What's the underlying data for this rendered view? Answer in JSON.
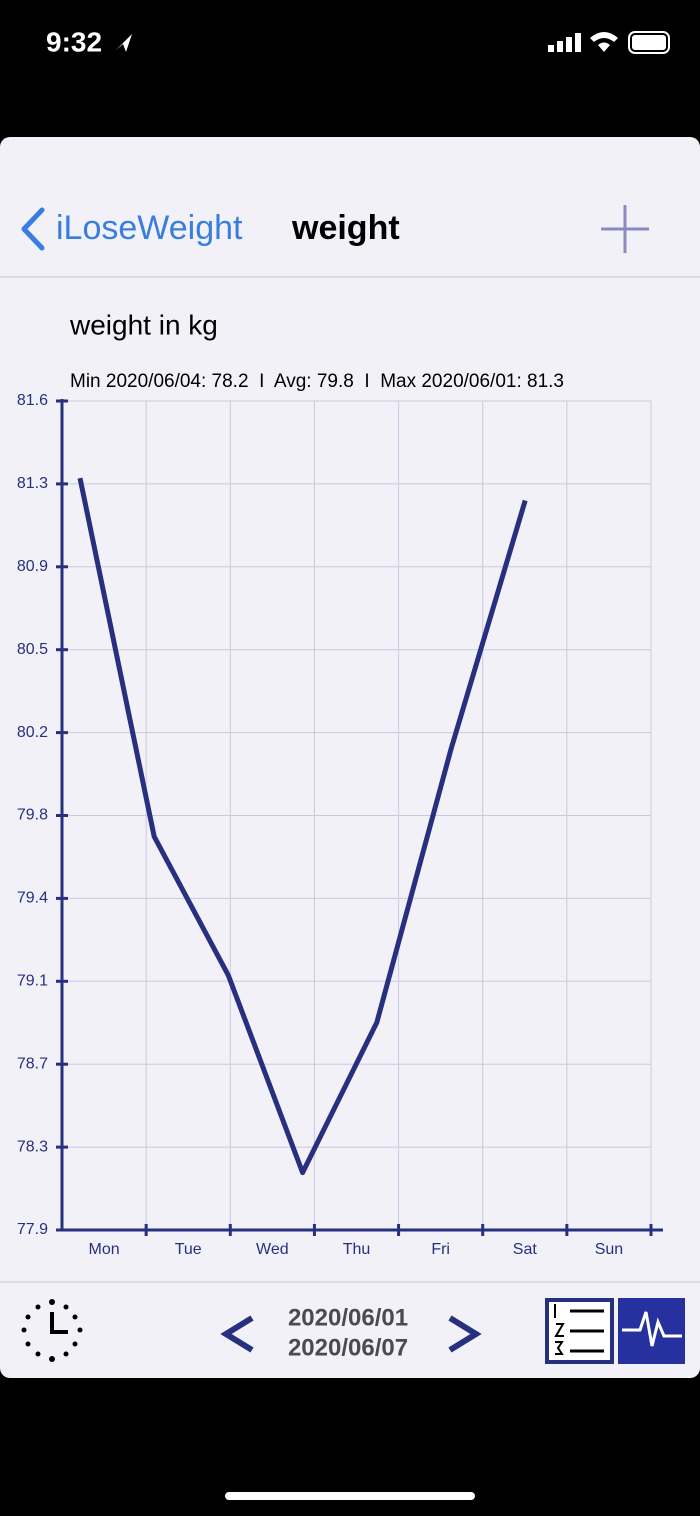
{
  "status_bar": {
    "time": "9:32"
  },
  "nav": {
    "back": "iLoseWeight",
    "title": "weight"
  },
  "chart_data": {
    "type": "line",
    "title": "weight in kg",
    "subtitle": "Min 2020/06/04: 78.2  I  Avg: 79.8  I  Max 2020/06/01: 81.3",
    "categories": [
      "Mon",
      "Tue",
      "Wed",
      "Thu",
      "Fri",
      "Sat",
      "Sun"
    ],
    "series": [
      {
        "color": "#26307f",
        "values": [
          81.3,
          79.7,
          79.08,
          78.2,
          78.87,
          80.09,
          81.2
        ]
      }
    ],
    "ylim": [
      77.944,
      81.644
    ],
    "yticks": [
      {
        "value": 77.944,
        "label": "77.9"
      },
      {
        "value": 78.314,
        "label": "78.3"
      },
      {
        "value": 78.684,
        "label": "78.7"
      },
      {
        "value": 79.054,
        "label": "79.1"
      },
      {
        "value": 79.424,
        "label": "79.4"
      },
      {
        "value": 79.794,
        "label": "79.8"
      },
      {
        "value": 80.164,
        "label": "80.2"
      },
      {
        "value": 80.534,
        "label": "80.5"
      },
      {
        "value": 80.904,
        "label": "80.9"
      },
      {
        "value": 81.274,
        "label": "81.3"
      },
      {
        "value": 81.644,
        "label": "81.6"
      }
    ],
    "grid": true
  },
  "footer": {
    "date_from": "2020/06/01",
    "date_to": "2020/06/07"
  }
}
